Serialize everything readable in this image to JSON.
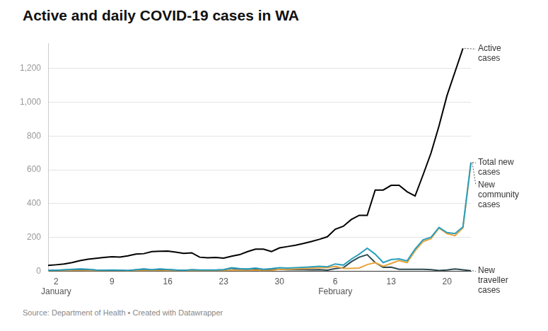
{
  "chart_data": {
    "type": "line",
    "title": "Active and daily COVID-19 cases in WA",
    "source": "Source: Department of Health • Created with Datawrapper",
    "categories": [
      null,
      "2 January",
      null,
      null,
      null,
      null,
      null,
      null,
      "9",
      null,
      null,
      null,
      null,
      null,
      null,
      "16",
      null,
      null,
      null,
      null,
      null,
      null,
      "23",
      null,
      null,
      null,
      null,
      null,
      null,
      "30",
      null,
      null,
      null,
      null,
      null,
      null,
      "6 February",
      null,
      null,
      null,
      null,
      null,
      null,
      "13",
      null,
      null,
      null,
      null,
      null,
      null,
      "20",
      null,
      null,
      null
    ],
    "series": [
      {
        "name": "Active cases",
        "color": "#000000",
        "values": [
          33,
          37,
          42,
          50,
          62,
          70,
          75,
          80,
          85,
          83,
          90,
          100,
          103,
          115,
          117,
          118,
          112,
          105,
          108,
          82,
          78,
          80,
          76,
          88,
          97,
          115,
          130,
          130,
          115,
          137,
          145,
          153,
          163,
          175,
          188,
          203,
          248,
          265,
          305,
          330,
          330,
          480,
          480,
          508,
          508,
          470,
          445,
          570,
          700,
          860,
          1040,
          1180,
          1320,
          null
        ]
      },
      {
        "name": "Total new cases",
        "color": "#2a9fbc",
        "values": [
          3,
          5,
          7,
          10,
          12,
          10,
          6,
          5,
          6,
          5,
          3,
          8,
          12,
          8,
          12,
          9,
          6,
          4,
          8,
          6,
          6,
          6,
          8,
          20,
          14,
          12,
          18,
          10,
          14,
          20,
          18,
          20,
          22,
          25,
          28,
          25,
          42,
          35,
          70,
          100,
          135,
          100,
          50,
          68,
          72,
          60,
          130,
          185,
          200,
          258,
          228,
          222,
          262,
          645
        ]
      },
      {
        "name": "New community cases",
        "color": "#e8a33d",
        "values": [
          0,
          1,
          1,
          2,
          2,
          1,
          1,
          1,
          1,
          1,
          1,
          2,
          1,
          2,
          2,
          1,
          1,
          1,
          2,
          1,
          1,
          1,
          1,
          4,
          3,
          2,
          5,
          3,
          4,
          10,
          10,
          12,
          14,
          18,
          20,
          20,
          28,
          15,
          15,
          18,
          38,
          50,
          28,
          45,
          62,
          50,
          120,
          175,
          192,
          255,
          222,
          210,
          255,
          640
        ]
      },
      {
        "name": "New traveller cases",
        "color": "#2e4a4f",
        "values": [
          3,
          4,
          6,
          8,
          10,
          9,
          5,
          4,
          5,
          4,
          2,
          6,
          11,
          6,
          10,
          8,
          5,
          3,
          6,
          5,
          5,
          5,
          7,
          16,
          11,
          10,
          13,
          7,
          10,
          10,
          8,
          8,
          8,
          7,
          8,
          5,
          14,
          20,
          55,
          82,
          97,
          50,
          22,
          23,
          10,
          10,
          10,
          10,
          8,
          3,
          6,
          12,
          7,
          2
        ]
      }
    ],
    "ylim": [
      0,
      1350
    ],
    "yticks": [
      0,
      200,
      400,
      600,
      800,
      {
        "value": 1000,
        "label": "1,000"
      },
      {
        "value": 1200,
        "label": "1,200"
      }
    ],
    "grid": true
  }
}
